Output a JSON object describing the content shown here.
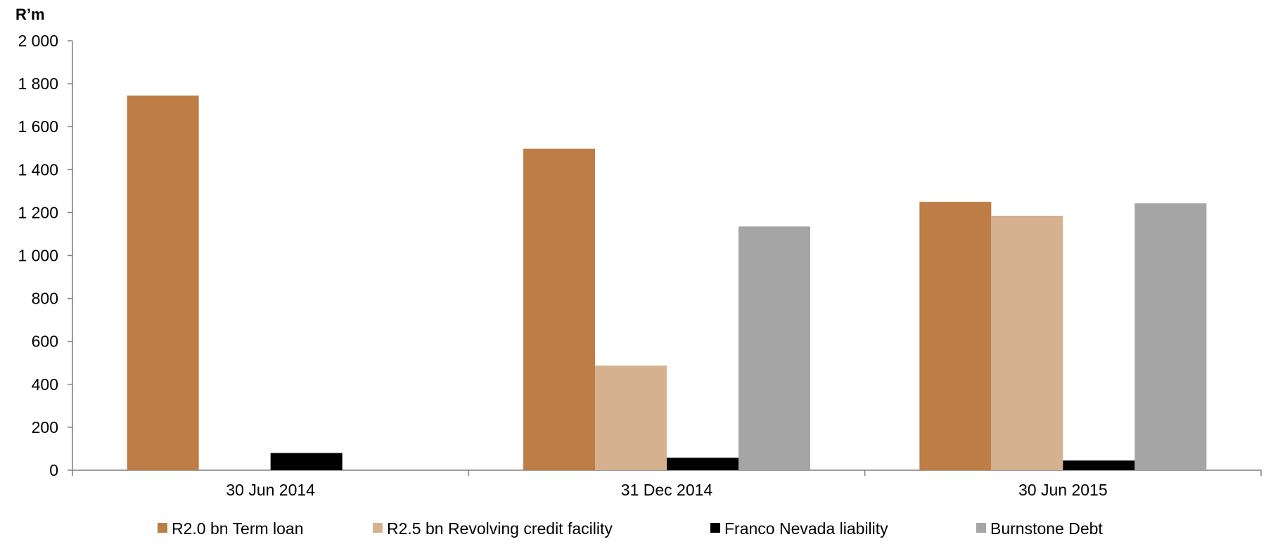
{
  "chart_data": {
    "type": "bar",
    "title": "",
    "xlabel": "",
    "ylabel": "R’m",
    "ylim": [
      0,
      2000
    ],
    "yticks": [
      0,
      200,
      400,
      600,
      800,
      1000,
      1200,
      1400,
      1600,
      1800,
      2000
    ],
    "ytick_labels": [
      "0",
      "200",
      "400",
      "600",
      "800",
      "1 000",
      "1 200",
      "1 400",
      "1 600",
      "1 800",
      "2 000"
    ],
    "categories": [
      "30 Jun 2014",
      "31 Dec 2014",
      "30 Jun 2015"
    ],
    "series": [
      {
        "name": "R2.0 bn Term loan",
        "color": "#BD7D45",
        "values": [
          1745,
          1497,
          1250
        ]
      },
      {
        "name": "R2.5 bn Revolving credit facility",
        "color": "#D6B190",
        "values": [
          0,
          487,
          1185
        ]
      },
      {
        "name": "Franco Nevada liability",
        "color": "#000000",
        "values": [
          80,
          58,
          45
        ]
      },
      {
        "name": "Burnstone Debt",
        "color": "#A5A5A5",
        "values": [
          0,
          1135,
          1243
        ]
      }
    ],
    "grid": false,
    "legend": "bottom"
  }
}
